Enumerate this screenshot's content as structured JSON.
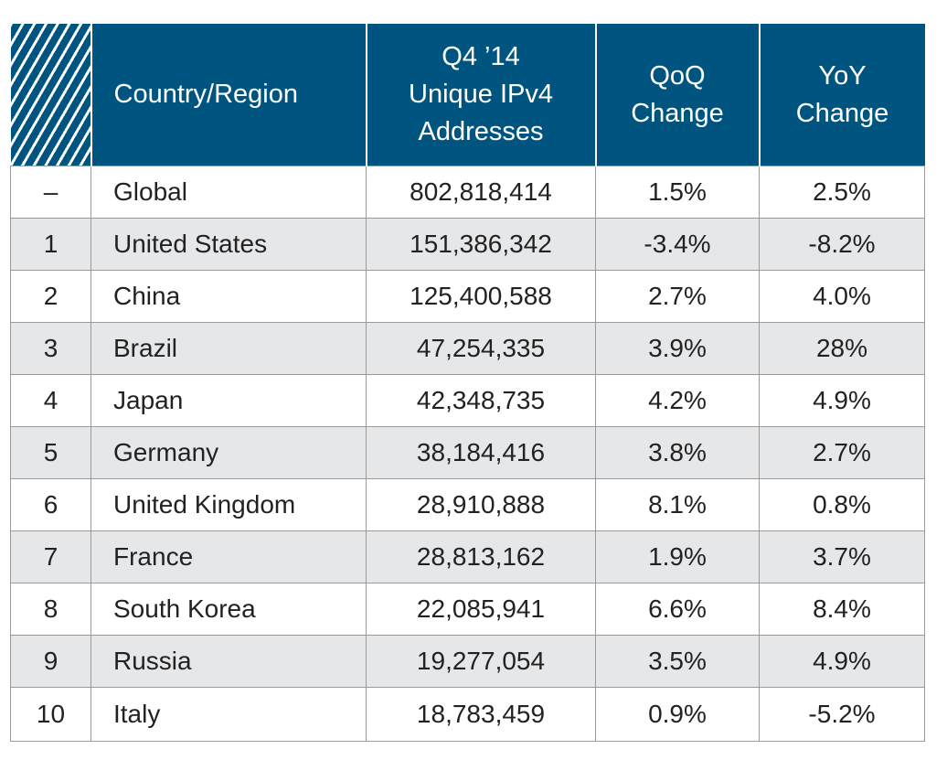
{
  "chart_data": {
    "type": "table",
    "headers": {
      "rank": "",
      "region": "Country/Region",
      "addresses": [
        "Q4 ’14",
        "Unique IPv4",
        "Addresses"
      ],
      "qoq": [
        "QoQ",
        "Change"
      ],
      "yoy": [
        "YoY",
        "Change"
      ]
    },
    "rows": [
      {
        "rank": "–",
        "region": "Global",
        "addresses": "802,818,414",
        "qoq": "1.5%",
        "yoy": "2.5%"
      },
      {
        "rank": "1",
        "region": "United States",
        "addresses": "151,386,342",
        "qoq": "-3.4%",
        "yoy": "-8.2%"
      },
      {
        "rank": "2",
        "region": "China",
        "addresses": "125,400,588",
        "qoq": "2.7%",
        "yoy": "4.0%"
      },
      {
        "rank": "3",
        "region": "Brazil",
        "addresses": "47,254,335",
        "qoq": "3.9%",
        "yoy": "28%"
      },
      {
        "rank": "4",
        "region": "Japan",
        "addresses": "42,348,735",
        "qoq": "4.2%",
        "yoy": "4.9%"
      },
      {
        "rank": "5",
        "region": "Germany",
        "addresses": "38,184,416",
        "qoq": "3.8%",
        "yoy": "2.7%"
      },
      {
        "rank": "6",
        "region": "United Kingdom",
        "addresses": "28,910,888",
        "qoq": "8.1%",
        "yoy": "0.8%"
      },
      {
        "rank": "7",
        "region": "France",
        "addresses": "28,813,162",
        "qoq": "1.9%",
        "yoy": "3.7%"
      },
      {
        "rank": "8",
        "region": "South Korea",
        "addresses": "22,085,941",
        "qoq": "6.6%",
        "yoy": "8.4%"
      },
      {
        "rank": "9",
        "region": "Russia",
        "addresses": "19,277,054",
        "qoq": "3.5%",
        "yoy": "4.9%"
      },
      {
        "rank": "10",
        "region": "Italy",
        "addresses": "18,783,459",
        "qoq": "0.9%",
        "yoy": "-5.2%"
      }
    ],
    "colors": {
      "header": "#005580",
      "stripe": "#e6e7e9",
      "grid": "#9a9a9a"
    }
  }
}
